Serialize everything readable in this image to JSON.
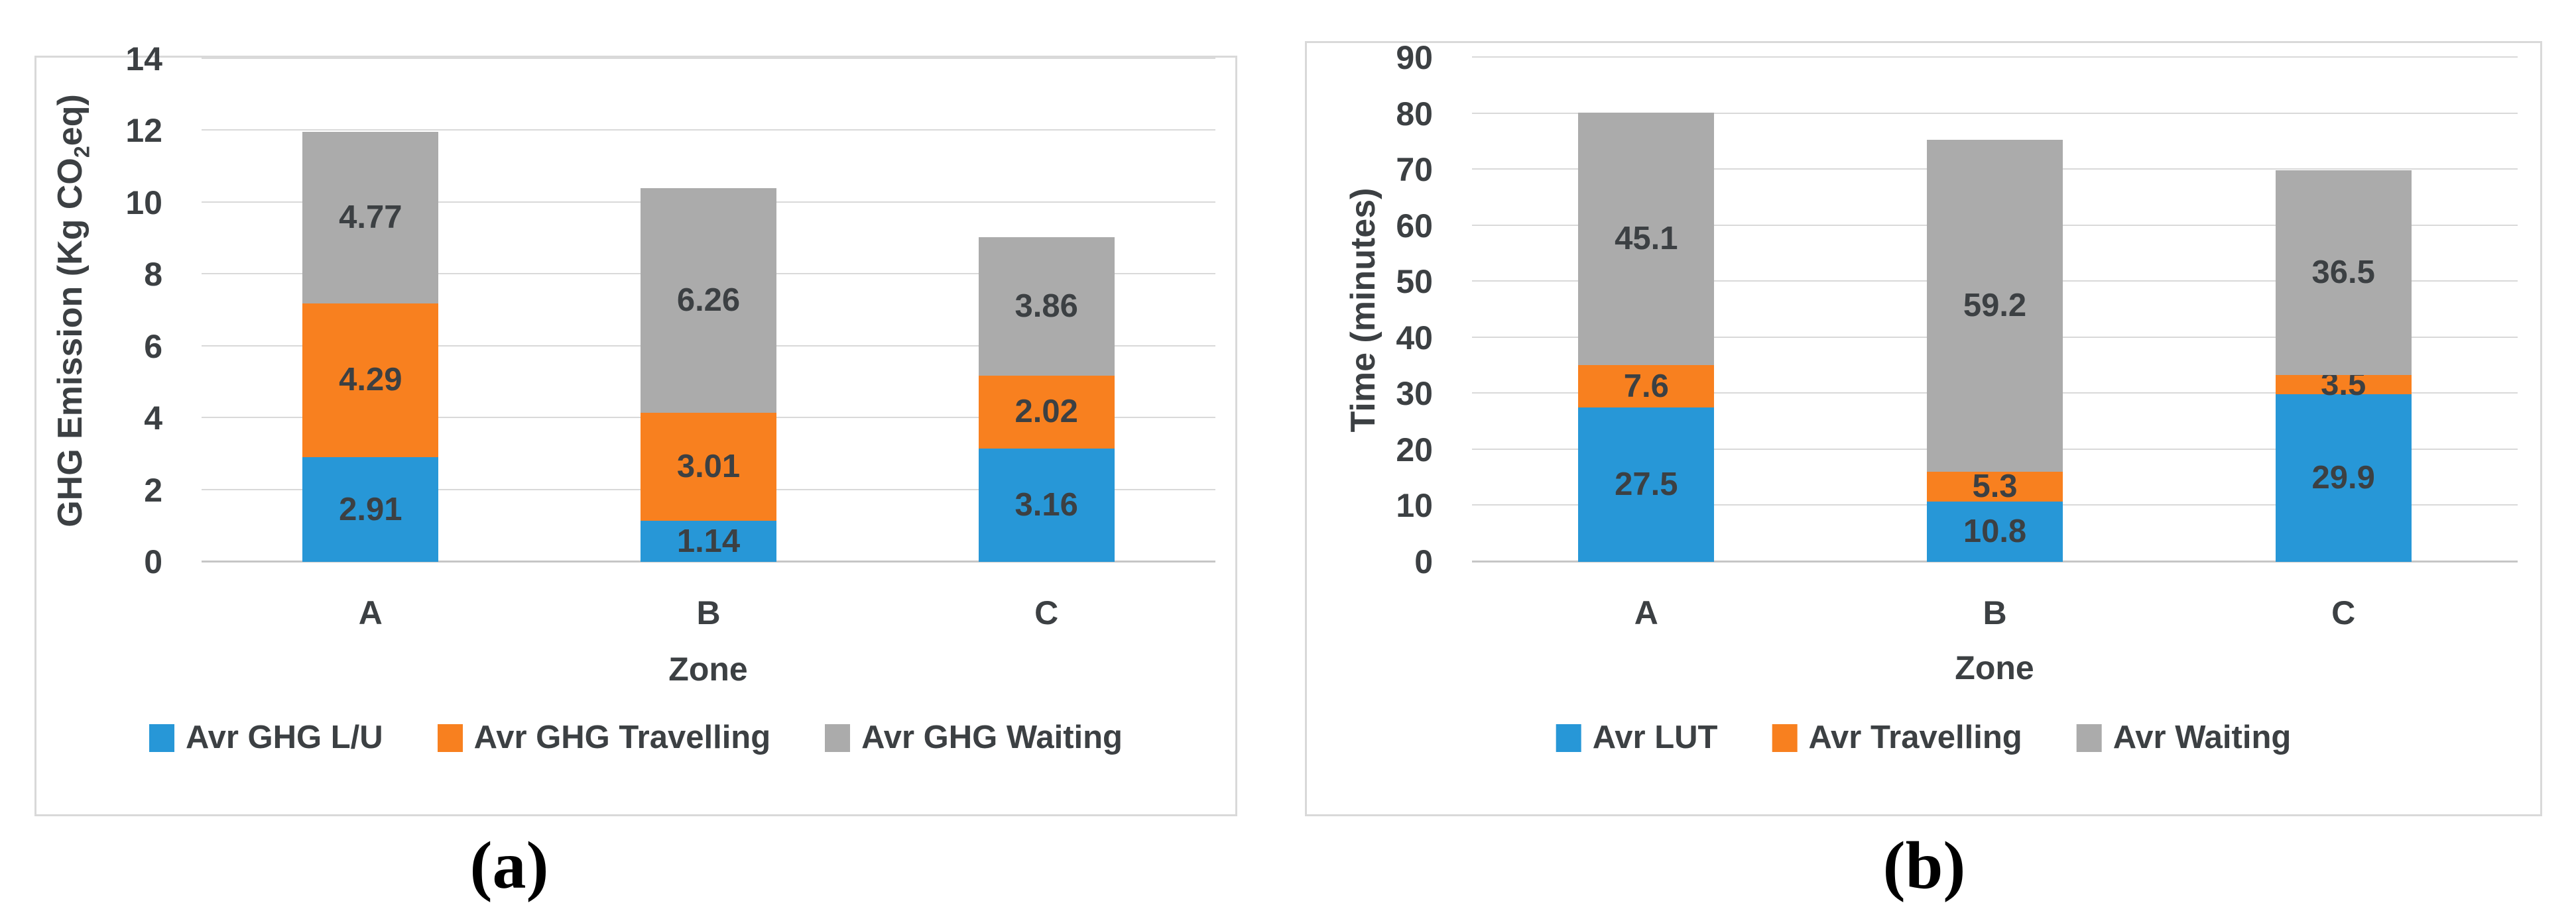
{
  "colors": {
    "series_blue": "#2797d7",
    "series_orange": "#f8801f",
    "series_gray": "#ababab",
    "gridline": "#d9d9d9",
    "axis_line": "#c6c6c6",
    "panel_border": "#d9d9d9",
    "text": "#3c4043",
    "caption_text": "#000000"
  },
  "chart_data": [
    {
      "type": "bar",
      "stacked": true,
      "caption": "(a)",
      "title": "",
      "xlabel": "Zone",
      "ylabel": "GHG Emission (Kg CO2eq)",
      "ylabel_parts": [
        {
          "text": "GHG Emission (Kg CO"
        },
        {
          "text": "2",
          "sub": true
        },
        {
          "text": "eq)"
        }
      ],
      "ylim": [
        0,
        14
      ],
      "ytick_step": 2,
      "yticks": [
        "0",
        "2",
        "4",
        "6",
        "8",
        "10",
        "12",
        "14"
      ],
      "categories": [
        "A",
        "B",
        "C"
      ],
      "grid": true,
      "legend_position": "bottom",
      "series": [
        {
          "name": "Avr GHG L/U",
          "color": "#2797d7",
          "values": [
            2.91,
            1.14,
            3.16
          ]
        },
        {
          "name": "Avr GHG Travelling",
          "color": "#f8801f",
          "values": [
            4.29,
            3.01,
            2.02
          ]
        },
        {
          "name": "Avr GHG Waiting",
          "color": "#ababab",
          "values": [
            4.77,
            6.26,
            3.86
          ]
        }
      ]
    },
    {
      "type": "bar",
      "stacked": true,
      "caption": "(b)",
      "title": "",
      "xlabel": "Zone",
      "ylabel": "Time (minutes)",
      "ylabel_parts": [
        {
          "text": "Time (minutes)"
        }
      ],
      "ylim": [
        0,
        90
      ],
      "ytick_step": 10,
      "yticks": [
        "0",
        "10",
        "20",
        "30",
        "40",
        "50",
        "60",
        "70",
        "80",
        "90"
      ],
      "categories": [
        "A",
        "B",
        "C"
      ],
      "grid": true,
      "legend_position": "bottom",
      "series": [
        {
          "name": "Avr LUT",
          "color": "#2797d7",
          "values": [
            27.5,
            10.8,
            29.9
          ]
        },
        {
          "name": "Avr Travelling",
          "color": "#f8801f",
          "values": [
            7.6,
            5.3,
            3.5
          ]
        },
        {
          "name": "Avr Waiting",
          "color": "#ababab",
          "values": [
            45.1,
            59.2,
            36.5
          ]
        }
      ]
    }
  ]
}
